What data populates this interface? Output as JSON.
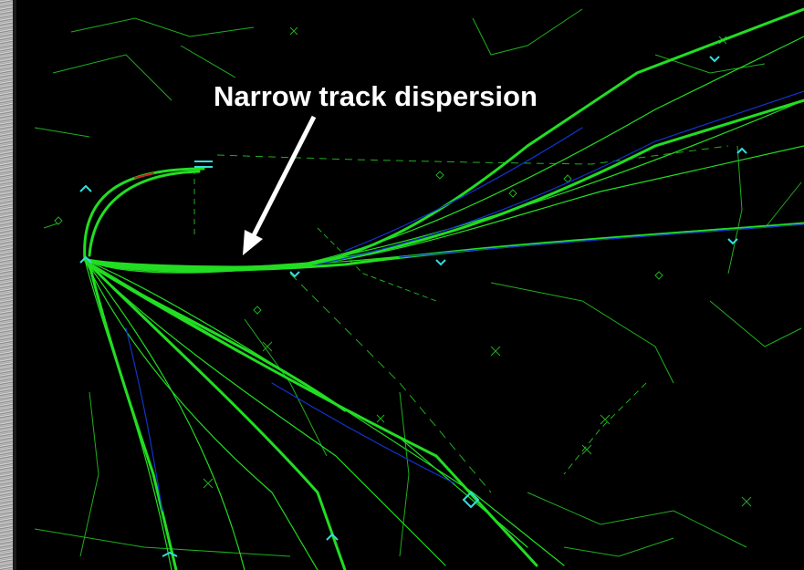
{
  "annotation": {
    "label": "Narrow track dispersion",
    "arrow_icon": "white-arrow-icon"
  },
  "colors": {
    "background": "#000000",
    "track": "#22dd22",
    "track_core": "#1133cc",
    "map_lines": "#1fae1f",
    "fix_marker": "#33dddd",
    "label_text": "#ffffff"
  }
}
